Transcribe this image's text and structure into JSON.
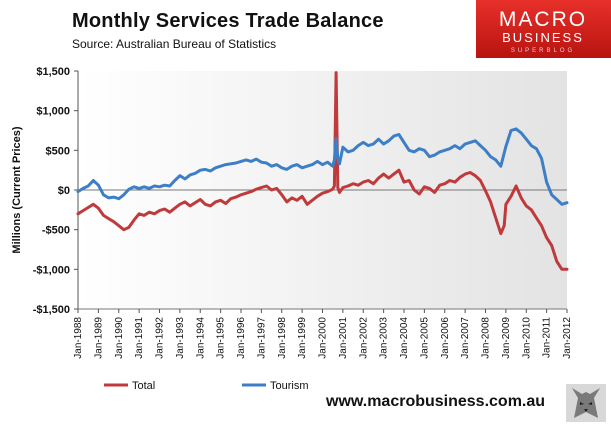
{
  "chart_data": {
    "type": "line",
    "title": "Monthly  Services  Trade  Balance",
    "subtitle": "Source:  Australian Bureau of Statistics",
    "ylabel": "Millions (Current Prices)",
    "xlabel": "",
    "ylim": [
      -1500,
      1500
    ],
    "xlim": [
      "1988-01",
      "2012-01"
    ],
    "grid": false,
    "legend_position": "bottom",
    "yticks": [
      1500,
      1000,
      500,
      0,
      -500,
      -1000,
      -1500
    ],
    "ytick_labels": [
      "$1,500",
      "$1,000",
      "$500",
      "$0",
      "-$500",
      "-$1,000",
      "-$1,500"
    ],
    "xtick_labels": [
      "Jan-1988",
      "Jan-1989",
      "Jan-1990",
      "Jan-1991",
      "Jan-1992",
      "Jan-1993",
      "Jan-1994",
      "Jan-1995",
      "Jan-1996",
      "Jan-1997",
      "Jan-1998",
      "Jan-1999",
      "Jan-2000",
      "Jan-2001",
      "Jan-2002",
      "Jan-2003",
      "Jan-2004",
      "Jan-2005",
      "Jan-2006",
      "Jan-2007",
      "Jan-2008",
      "Jan-2009",
      "Jan-2010",
      "Jan-2011",
      "Jan-2012"
    ],
    "series": [
      {
        "name": "Total",
        "color": "#c0393b",
        "points": [
          [
            "1988-01",
            -300
          ],
          [
            "1988-04",
            -260
          ],
          [
            "1988-07",
            -220
          ],
          [
            "1988-10",
            -180
          ],
          [
            "1989-01",
            -230
          ],
          [
            "1989-04",
            -320
          ],
          [
            "1989-07",
            -360
          ],
          [
            "1989-10",
            -400
          ],
          [
            "1990-01",
            -450
          ],
          [
            "1990-04",
            -500
          ],
          [
            "1990-07",
            -470
          ],
          [
            "1990-10",
            -380
          ],
          [
            "1991-01",
            -300
          ],
          [
            "1991-04",
            -320
          ],
          [
            "1991-07",
            -280
          ],
          [
            "1991-10",
            -300
          ],
          [
            "1992-01",
            -260
          ],
          [
            "1992-04",
            -240
          ],
          [
            "1992-07",
            -280
          ],
          [
            "1992-10",
            -230
          ],
          [
            "1993-01",
            -180
          ],
          [
            "1993-04",
            -150
          ],
          [
            "1993-07",
            -200
          ],
          [
            "1993-10",
            -160
          ],
          [
            "1994-01",
            -120
          ],
          [
            "1994-04",
            -180
          ],
          [
            "1994-07",
            -200
          ],
          [
            "1994-10",
            -150
          ],
          [
            "1995-01",
            -130
          ],
          [
            "1995-04",
            -170
          ],
          [
            "1995-07",
            -110
          ],
          [
            "1995-10",
            -90
          ],
          [
            "1996-01",
            -60
          ],
          [
            "1996-04",
            -40
          ],
          [
            "1996-07",
            -20
          ],
          [
            "1996-10",
            10
          ],
          [
            "1997-01",
            30
          ],
          [
            "1997-04",
            50
          ],
          [
            "1997-07",
            0
          ],
          [
            "1997-10",
            20
          ],
          [
            "1998-01",
            -60
          ],
          [
            "1998-04",
            -150
          ],
          [
            "1998-07",
            -100
          ],
          [
            "1998-10",
            -130
          ],
          [
            "1999-01",
            -80
          ],
          [
            "1999-04",
            -180
          ],
          [
            "1999-07",
            -130
          ],
          [
            "1999-10",
            -80
          ],
          [
            "2000-01",
            -40
          ],
          [
            "2000-04",
            -20
          ],
          [
            "2000-07",
            10
          ],
          [
            "2000-08",
            50
          ],
          [
            "2000-09",
            1480
          ],
          [
            "2000-10",
            30
          ],
          [
            "2000-11",
            -30
          ],
          [
            "2001-01",
            30
          ],
          [
            "2001-04",
            50
          ],
          [
            "2001-07",
            80
          ],
          [
            "2001-10",
            60
          ],
          [
            "2002-01",
            100
          ],
          [
            "2002-04",
            120
          ],
          [
            "2002-07",
            80
          ],
          [
            "2002-10",
            150
          ],
          [
            "2003-01",
            200
          ],
          [
            "2003-04",
            150
          ],
          [
            "2003-07",
            200
          ],
          [
            "2003-10",
            250
          ],
          [
            "2004-01",
            100
          ],
          [
            "2004-04",
            120
          ],
          [
            "2004-07",
            0
          ],
          [
            "2004-10",
            -50
          ],
          [
            "2005-01",
            40
          ],
          [
            "2005-04",
            20
          ],
          [
            "2005-07",
            -30
          ],
          [
            "2005-10",
            60
          ],
          [
            "2006-01",
            80
          ],
          [
            "2006-04",
            120
          ],
          [
            "2006-07",
            100
          ],
          [
            "2006-10",
            160
          ],
          [
            "2007-01",
            200
          ],
          [
            "2007-04",
            220
          ],
          [
            "2007-07",
            180
          ],
          [
            "2007-10",
            120
          ],
          [
            "2008-01",
            -10
          ],
          [
            "2008-04",
            -150
          ],
          [
            "2008-07",
            -350
          ],
          [
            "2008-10",
            -550
          ],
          [
            "2008-12",
            -450
          ],
          [
            "2009-01",
            -180
          ],
          [
            "2009-04",
            -80
          ],
          [
            "2009-07",
            50
          ],
          [
            "2009-10",
            -100
          ],
          [
            "2010-01",
            -200
          ],
          [
            "2010-04",
            -250
          ],
          [
            "2010-07",
            -350
          ],
          [
            "2010-10",
            -450
          ],
          [
            "2011-01",
            -600
          ],
          [
            "2011-04",
            -700
          ],
          [
            "2011-07",
            -900
          ],
          [
            "2011-10",
            -1000
          ],
          [
            "2012-01",
            -1000
          ]
        ]
      },
      {
        "name": "Tourism",
        "color": "#3d7fc7",
        "points": [
          [
            "1988-01",
            -20
          ],
          [
            "1988-04",
            20
          ],
          [
            "1988-07",
            50
          ],
          [
            "1988-10",
            120
          ],
          [
            "1989-01",
            60
          ],
          [
            "1989-04",
            -60
          ],
          [
            "1989-07",
            -100
          ],
          [
            "1989-10",
            -90
          ],
          [
            "1990-01",
            -110
          ],
          [
            "1990-04",
            -60
          ],
          [
            "1990-07",
            10
          ],
          [
            "1990-10",
            40
          ],
          [
            "1991-01",
            20
          ],
          [
            "1991-04",
            40
          ],
          [
            "1991-07",
            20
          ],
          [
            "1991-10",
            50
          ],
          [
            "1992-01",
            40
          ],
          [
            "1992-04",
            60
          ],
          [
            "1992-07",
            50
          ],
          [
            "1992-10",
            120
          ],
          [
            "1993-01",
            180
          ],
          [
            "1993-04",
            140
          ],
          [
            "1993-07",
            190
          ],
          [
            "1993-10",
            210
          ],
          [
            "1994-01",
            250
          ],
          [
            "1994-04",
            260
          ],
          [
            "1994-07",
            240
          ],
          [
            "1994-10",
            280
          ],
          [
            "1995-01",
            300
          ],
          [
            "1995-04",
            320
          ],
          [
            "1995-07",
            330
          ],
          [
            "1995-10",
            340
          ],
          [
            "1996-01",
            360
          ],
          [
            "1996-04",
            380
          ],
          [
            "1996-07",
            360
          ],
          [
            "1996-10",
            390
          ],
          [
            "1997-01",
            350
          ],
          [
            "1997-04",
            340
          ],
          [
            "1997-07",
            300
          ],
          [
            "1997-10",
            320
          ],
          [
            "1998-01",
            280
          ],
          [
            "1998-04",
            260
          ],
          [
            "1998-07",
            300
          ],
          [
            "1998-10",
            320
          ],
          [
            "1999-01",
            280
          ],
          [
            "1999-04",
            300
          ],
          [
            "1999-07",
            320
          ],
          [
            "1999-10",
            360
          ],
          [
            "2000-01",
            320
          ],
          [
            "2000-04",
            350
          ],
          [
            "2000-07",
            300
          ],
          [
            "2000-08",
            380
          ],
          [
            "2000-09",
            650
          ],
          [
            "2000-10",
            400
          ],
          [
            "2000-11",
            330
          ],
          [
            "2001-01",
            540
          ],
          [
            "2001-04",
            480
          ],
          [
            "2001-07",
            500
          ],
          [
            "2001-10",
            560
          ],
          [
            "2002-01",
            600
          ],
          [
            "2002-04",
            560
          ],
          [
            "2002-07",
            580
          ],
          [
            "2002-10",
            640
          ],
          [
            "2003-01",
            580
          ],
          [
            "2003-04",
            620
          ],
          [
            "2003-07",
            680
          ],
          [
            "2003-10",
            700
          ],
          [
            "2004-01",
            600
          ],
          [
            "2004-04",
            500
          ],
          [
            "2004-07",
            480
          ],
          [
            "2004-10",
            520
          ],
          [
            "2005-01",
            500
          ],
          [
            "2005-04",
            420
          ],
          [
            "2005-07",
            440
          ],
          [
            "2005-10",
            480
          ],
          [
            "2006-01",
            500
          ],
          [
            "2006-04",
            520
          ],
          [
            "2006-07",
            560
          ],
          [
            "2006-10",
            520
          ],
          [
            "2007-01",
            580
          ],
          [
            "2007-04",
            600
          ],
          [
            "2007-07",
            620
          ],
          [
            "2007-10",
            560
          ],
          [
            "2008-01",
            500
          ],
          [
            "2008-04",
            420
          ],
          [
            "2008-07",
            380
          ],
          [
            "2008-10",
            300
          ],
          [
            "2009-01",
            550
          ],
          [
            "2009-04",
            750
          ],
          [
            "2009-07",
            770
          ],
          [
            "2009-10",
            720
          ],
          [
            "2010-01",
            640
          ],
          [
            "2010-04",
            560
          ],
          [
            "2010-07",
            520
          ],
          [
            "2010-10",
            400
          ],
          [
            "2011-01",
            100
          ],
          [
            "2011-04",
            -60
          ],
          [
            "2011-07",
            -120
          ],
          [
            "2011-10",
            -180
          ],
          [
            "2012-01",
            -160
          ]
        ]
      }
    ]
  },
  "branding": {
    "logo_line1": "MACRO",
    "logo_line2": "BUSINESS",
    "logo_line3": "SUPERBLOG",
    "url": "www.macrobusiness.com.au"
  }
}
